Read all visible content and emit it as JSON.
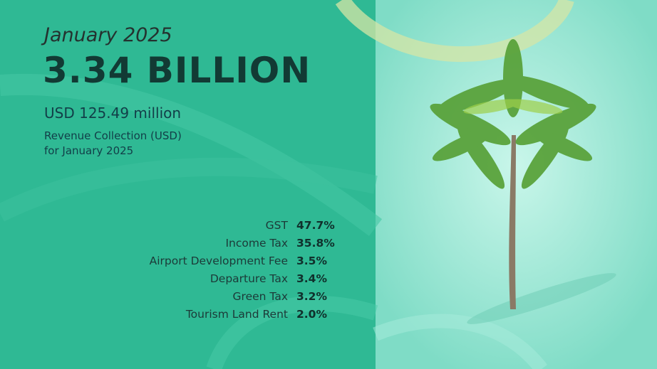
{
  "period": "January 2025",
  "headline": "3.34 BILLION",
  "subheadline": "USD 125.49 million",
  "description": [
    "Revenue Collection (USD)",
    "for January 2025"
  ],
  "breakdown": [
    {
      "label": "GST",
      "share": "47.7%"
    },
    {
      "label": "Income Tax",
      "share": "35.8%"
    },
    {
      "label": "Airport Development Fee",
      "share": "3.5%"
    },
    {
      "label": "Departure Tax",
      "share": "3.4%"
    },
    {
      "label": "Green Tax",
      "share": "3.2%"
    },
    {
      "label": "Tourism Land Rent",
      "share": "2.0%"
    }
  ]
}
